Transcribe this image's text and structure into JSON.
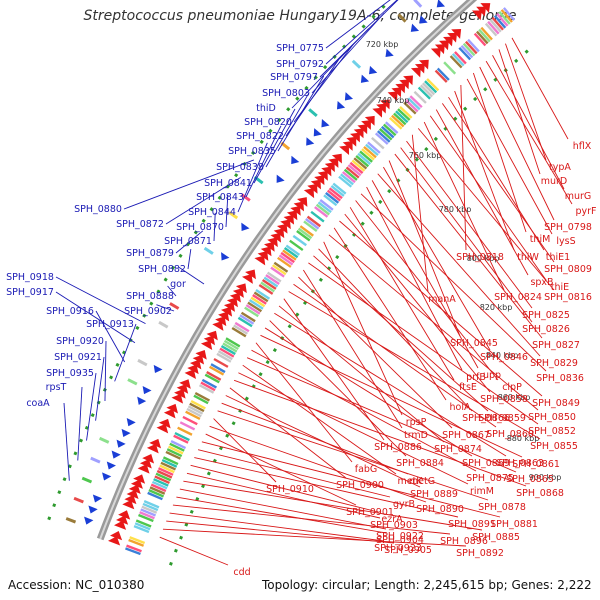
{
  "title": "Streptococcus pneumoniae Hungary19A-6, complete genome",
  "footer": {
    "accession": "Accession: NC_010380",
    "topology": "Topology: circular; Length: 2,245,615 bp; Genes: 2,222"
  },
  "colors": {
    "left_labels": "#1a1ab4",
    "right_labels": "#d81818",
    "backbone": "#9a9a9a",
    "forward_cds": "#e81818",
    "reverse_cds": "#1a3ed6",
    "gc_dots": "#2e9a2e"
  },
  "kbp_ticks": [
    "720 kbp",
    "740 kbp",
    "760 kbp",
    "780 kbp",
    "800 kbp",
    "820 kbp",
    "840 kbp",
    "860 kbp",
    "880 kbp",
    "900 kbp"
  ],
  "left_genes": [
    "SPH_0775",
    "SPH_0792",
    "SPH_0797",
    "SPH_0803",
    "thiD",
    "SPH_0820",
    "SPH_0822",
    "SPH_0835",
    "SPH_0838",
    "SPH_0841",
    "SPH_0843",
    "SPH_0844",
    "SPH_0880",
    "SPH_0872",
    "SPH_0870",
    "SPH_0871",
    "SPH_0879",
    "SPH_0882",
    "gor",
    "SPH_0888",
    "SPH_0902",
    "SPH_0918",
    "SPH_0917",
    "SPH_0916",
    "SPH_0913",
    "SPH_0920",
    "SPH_0921",
    "SPH_0935",
    "rpsT",
    "coaA"
  ],
  "right_genes": [
    "hflX",
    "typA",
    "murD",
    "murG",
    "pyrF",
    "SPH_0798",
    "thiM",
    "lysS",
    "SPH_0818",
    "thiW",
    "thiE1",
    "SPH_0809",
    "spxB",
    "thiE",
    "SPH_0824",
    "SPH_0816",
    "manA",
    "SPH_0825",
    "SPH_0826",
    "SPH_0827",
    "SPH_0845",
    "SPH_0846",
    "SPH_0829",
    "upp",
    "prfB",
    "SPH_0836",
    "clpP",
    "ftsE",
    "SPH_0858",
    "SPH_0849",
    "holA",
    "SPH_0850",
    "rpsP",
    "SPH_0866",
    "SPH_0859",
    "SPH_0852",
    "trmD",
    "SPH_0867",
    "SPH_0860",
    "SPH_0855",
    "SPH_0886",
    "SPH_0874",
    "SPH_0863",
    "SPH_0884",
    "SPH_0869",
    "SPH_0861",
    "fabG",
    "SPH_0875",
    "SPH_0865",
    "metK",
    "rimM",
    "SPH_0868",
    "SPH_0900",
    "SPH_0889",
    "metG",
    "SPH_0878",
    "SPH_0910",
    "SPH_0890",
    "SPH_0901",
    "SPH_0881",
    "gyrB",
    "SPH_0891",
    "ezrA",
    "SPH_0903",
    "SPH_0885",
    "SPH_0922",
    "SPH_0904",
    "SPH_0896",
    "SPH_0923",
    "SPH_0905",
    "SPH_0892",
    "cdd"
  ]
}
